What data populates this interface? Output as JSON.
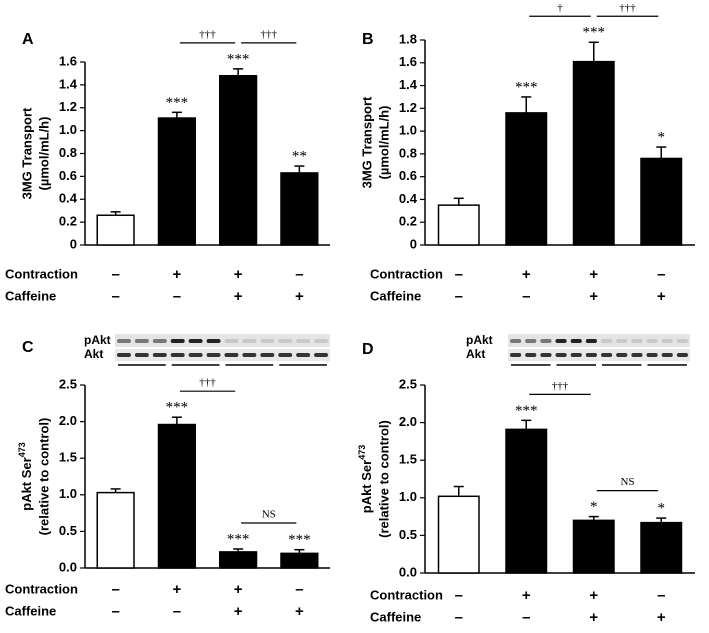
{
  "chart_data": [
    {
      "type": "bar",
      "letter": "A",
      "ylabel": [
        "3MG Transport",
        "(µmol/mL/h)"
      ],
      "values": [
        0.26,
        1.11,
        1.48,
        0.63
      ],
      "errors": [
        0.03,
        0.05,
        0.06,
        0.06
      ],
      "colors": [
        "#ffffff",
        "#000000",
        "#000000",
        "#000000"
      ],
      "significance": [
        null,
        "***",
        "***",
        "**"
      ],
      "brackets": [
        {
          "between": [
            1,
            2
          ],
          "label": "†††"
        },
        {
          "between": [
            2,
            3
          ],
          "label": "†††"
        }
      ],
      "ylim": [
        0,
        1.6
      ],
      "yticks": [
        0,
        0.2,
        0.4,
        0.6,
        0.8,
        {
          "value": 1,
          "label": "1.0"
        },
        1.2,
        1.4,
        1.6
      ],
      "conditions": [
        {
          "name": "Contraction",
          "signs": [
            "–",
            "+",
            "+",
            "–"
          ]
        },
        {
          "name": "Caffeine",
          "signs": [
            "–",
            "–",
            "+",
            "+"
          ]
        }
      ]
    },
    {
      "type": "bar",
      "letter": "B",
      "ylabel": [
        "3MG Transport",
        "(µmol/mL/h)"
      ],
      "values": [
        0.35,
        1.16,
        1.61,
        0.76
      ],
      "errors": [
        0.06,
        0.14,
        0.17,
        0.1
      ],
      "colors": [
        "#ffffff",
        "#000000",
        "#000000",
        "#000000"
      ],
      "significance": [
        null,
        "***",
        "***",
        "*"
      ],
      "brackets": [
        {
          "between": [
            1,
            2
          ],
          "label": "†"
        },
        {
          "between": [
            2,
            3
          ],
          "label": "†††"
        }
      ],
      "ylim": [
        0,
        1.8
      ],
      "yticks": [
        0,
        0.2,
        0.4,
        0.6,
        0.8,
        {
          "value": 1,
          "label": "1.0"
        },
        1.2,
        1.4,
        1.6,
        1.8
      ],
      "conditions": [
        {
          "name": "Contraction",
          "signs": [
            "–",
            "+",
            "+",
            "–"
          ]
        },
        {
          "name": "Caffeine",
          "signs": [
            "–",
            "–",
            "+",
            "+"
          ]
        }
      ]
    },
    {
      "type": "bar",
      "letter": "C",
      "ylabel_main": "pAkt Ser",
      "ylabel_sup": "473",
      "ylabel_line2": "(relative to control)",
      "blot_labels": [
        "pAkt",
        "Akt"
      ],
      "values": [
        1.03,
        1.96,
        0.22,
        0.2
      ],
      "errors": [
        0.05,
        0.1,
        0.04,
        0.05
      ],
      "colors": [
        "#ffffff",
        "#000000",
        "#000000",
        "#000000"
      ],
      "significance": [
        null,
        "***",
        "***",
        "***"
      ],
      "brackets": [
        {
          "between": [
            1,
            2
          ],
          "label": "†††"
        },
        {
          "between": [
            2,
            3
          ],
          "label": "NS"
        }
      ],
      "ylim": [
        0,
        2.5
      ],
      "yticks": [
        {
          "value": 0,
          "label": "0.0"
        },
        0.5,
        {
          "value": 1,
          "label": "1.0"
        },
        1.5,
        {
          "value": 2,
          "label": "2.0"
        },
        2.5
      ],
      "conditions": [
        {
          "name": "Contraction",
          "signs": [
            "–",
            "+",
            "+",
            "–"
          ]
        },
        {
          "name": "Caffeine",
          "signs": [
            "–",
            "–",
            "+",
            "+"
          ]
        }
      ]
    },
    {
      "type": "bar",
      "letter": "D",
      "ylabel_main": "pAkt Ser",
      "ylabel_sup": "473",
      "ylabel_line2": "(relative to control)",
      "blot_labels": [
        "pAkt",
        "Akt"
      ],
      "values": [
        1.02,
        1.91,
        0.7,
        0.67
      ],
      "errors": [
        0.13,
        0.12,
        0.05,
        0.06
      ],
      "colors": [
        "#ffffff",
        "#000000",
        "#000000",
        "#000000"
      ],
      "significance": [
        null,
        "***",
        "*",
        "*"
      ],
      "brackets": [
        {
          "between": [
            1,
            2
          ],
          "label": "†††"
        },
        {
          "between": [
            2,
            3
          ],
          "label": "NS"
        }
      ],
      "ylim": [
        0,
        2.5
      ],
      "yticks": [
        {
          "value": 0,
          "label": "0.0"
        },
        0.5,
        {
          "value": 1,
          "label": "1.0"
        },
        1.5,
        {
          "value": 2,
          "label": "2.0"
        },
        2.5
      ],
      "conditions": [
        {
          "name": "Contraction",
          "signs": [
            "–",
            "+",
            "+",
            "–"
          ]
        },
        {
          "name": "Caffeine",
          "signs": [
            "–",
            "–",
            "+",
            "+"
          ]
        }
      ]
    }
  ]
}
